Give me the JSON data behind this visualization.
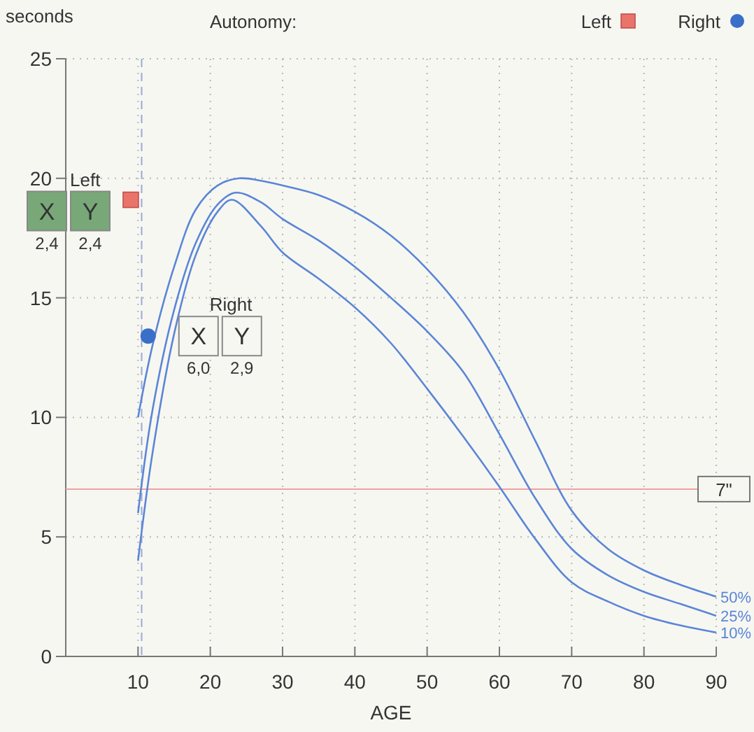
{
  "chart_data": {
    "type": "line",
    "xlabel": "AGE",
    "ylabel": "seconds",
    "legend_title": "Autonomy:",
    "xlim": [
      0,
      90
    ],
    "ylim": [
      0,
      25
    ],
    "xticks": [
      10,
      20,
      30,
      40,
      50,
      60,
      70,
      80,
      90
    ],
    "yticks": [
      0,
      5,
      10,
      15,
      20,
      25
    ],
    "grid": true,
    "legend": "top right",
    "line_style": "solid",
    "marker": "none",
    "series": [
      {
        "name": "50%",
        "color": "#5b86d6",
        "x": [
          10,
          12,
          15,
          18,
          21,
          24,
          27,
          30,
          35,
          40,
          45,
          50,
          55,
          60,
          65,
          70,
          75,
          80,
          85,
          90
        ],
        "values": [
          10,
          13,
          16.3,
          18.7,
          19.7,
          20,
          19.9,
          19.7,
          19.3,
          18.6,
          17.6,
          16.2,
          14.4,
          12,
          9,
          6.1,
          4.5,
          3.6,
          3,
          2.5
        ]
      },
      {
        "name": "25%",
        "color": "#5b86d6",
        "x": [
          10,
          12,
          15,
          18,
          21,
          23.5,
          27,
          30,
          35,
          40,
          45,
          50,
          55,
          60,
          65,
          70,
          75,
          80,
          85,
          90
        ],
        "values": [
          6,
          10.3,
          14.5,
          17.3,
          18.9,
          19.4,
          19,
          18.3,
          17.4,
          16.3,
          15,
          13.6,
          11.9,
          9.3,
          6.6,
          4.5,
          3.4,
          2.7,
          2.2,
          1.7
        ]
      },
      {
        "name": "10%",
        "color": "#5b86d6",
        "x": [
          10,
          12,
          15,
          18,
          21,
          23,
          27,
          30,
          35,
          40,
          45,
          50,
          55,
          60,
          65,
          70,
          75,
          80,
          85,
          90
        ],
        "values": [
          4,
          8.5,
          13.5,
          16.8,
          18.6,
          19.1,
          18,
          16.9,
          15.8,
          14.6,
          13.1,
          11.2,
          9.2,
          7.1,
          4.9,
          3.1,
          2.3,
          1.7,
          1.3,
          1
        ]
      },
      {
        "name": "Left",
        "type": "scatter",
        "marker": "square",
        "color": "#e8746a",
        "x": [
          9
        ],
        "values": [
          19.1
        ]
      },
      {
        "name": "Right",
        "type": "scatter",
        "marker": "circle",
        "color": "#3a6fc9",
        "x": [
          11.4
        ],
        "values": [
          13.4
        ]
      }
    ],
    "ref_lines": [
      {
        "axis": "y",
        "value": 7,
        "label": "7\"",
        "color": "#f2a0a0",
        "line_style": "solid"
      },
      {
        "axis": "x",
        "value": 10.5,
        "color": "#9aaad8",
        "line_style": "dashed"
      }
    ],
    "annotations": [
      "Left",
      "X",
      "Y",
      "2,4",
      "2,4",
      "Right",
      "X",
      "Y",
      "6,0",
      "2,9"
    ]
  }
}
